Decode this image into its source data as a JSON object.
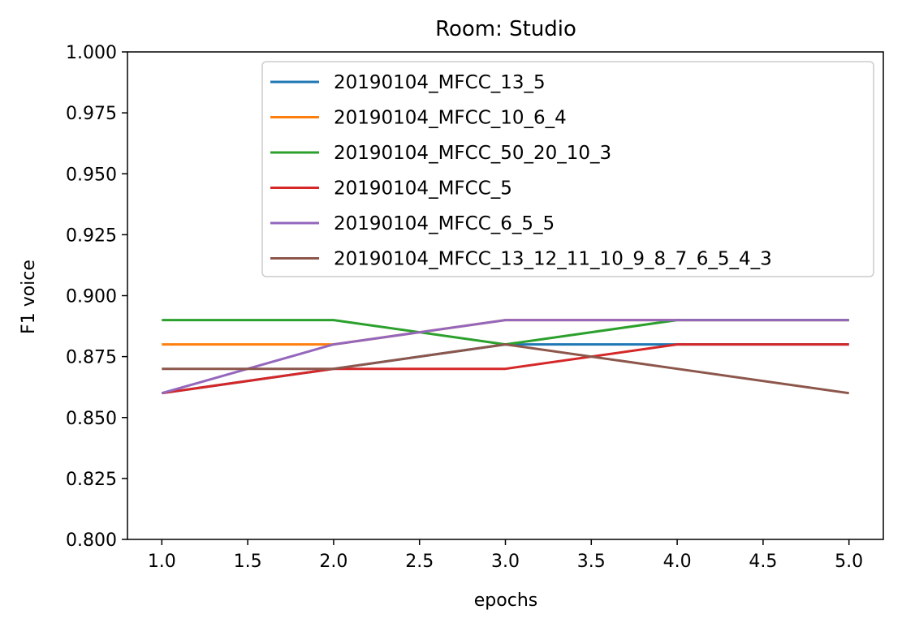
{
  "chart_data": {
    "type": "line",
    "title": "Room: Studio",
    "xlabel": "epochs",
    "ylabel": "F1 voice",
    "xlim": [
      0.8,
      5.2
    ],
    "ylim": [
      0.8,
      1.0
    ],
    "xticks": [
      "1.0",
      "1.5",
      "2.0",
      "2.5",
      "3.0",
      "3.5",
      "4.0",
      "4.5",
      "5.0"
    ],
    "yticks": [
      "0.800",
      "0.825",
      "0.850",
      "0.875",
      "0.900",
      "0.925",
      "0.950",
      "0.975",
      "1.000"
    ],
    "grid": false,
    "legend_position": "upper-right",
    "x": [
      1,
      2,
      3,
      4,
      5
    ],
    "series": [
      {
        "name": "20190104_MFCC_13_5",
        "color": "#1f77b4",
        "values": [
          0.86,
          0.87,
          0.88,
          0.88,
          0.88
        ]
      },
      {
        "name": "20190104_MFCC_10_6_4",
        "color": "#ff7f0e",
        "values": [
          0.88,
          0.88,
          0.89,
          0.89,
          0.89
        ]
      },
      {
        "name": "20190104_MFCC_50_20_10_3",
        "color": "#2ca02c",
        "values": [
          0.89,
          0.89,
          0.88,
          0.89,
          0.89
        ]
      },
      {
        "name": "20190104_MFCC_5",
        "color": "#d62728",
        "values": [
          0.86,
          0.87,
          0.87,
          0.88,
          0.88
        ]
      },
      {
        "name": "20190104_MFCC_6_5_5",
        "color": "#9467bd",
        "values": [
          0.86,
          0.88,
          0.89,
          0.89,
          0.89
        ]
      },
      {
        "name": "20190104_MFCC_13_12_11_10_9_8_7_6_5_4_3",
        "color": "#8c564b",
        "values": [
          0.87,
          0.87,
          0.88,
          0.87,
          0.86
        ]
      }
    ]
  }
}
